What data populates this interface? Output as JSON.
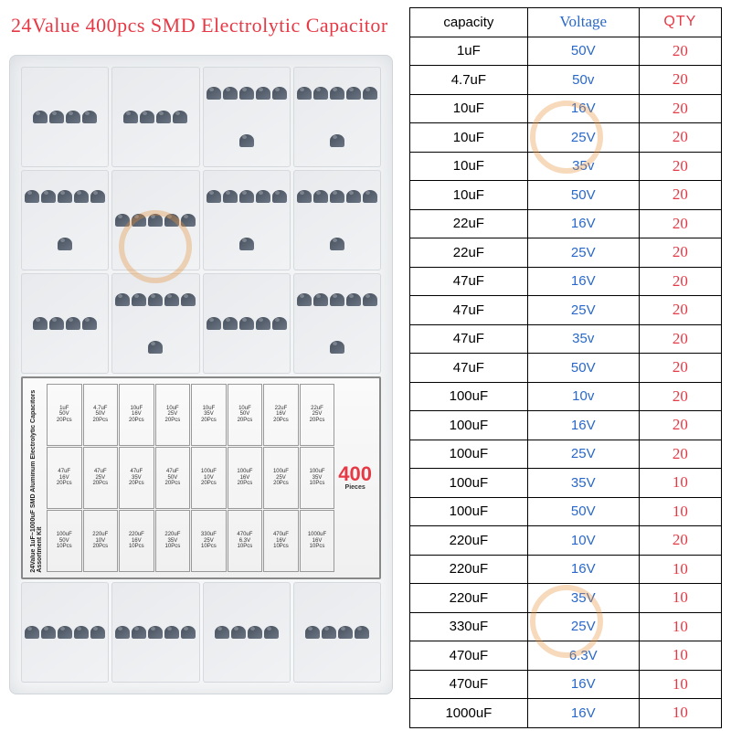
{
  "title": "24Value 400pcs SMD Electrolytic Capacitor",
  "pieces": {
    "number": "400",
    "label": "Pieces"
  },
  "label_title": "24Value 1uF~1000uF SMD Aluminum Electrolytic Capacitors Assortment Kit",
  "label_cells": [
    {
      "c": "1uF",
      "v": "50V",
      "q": "20Pcs"
    },
    {
      "c": "4.7uF",
      "v": "50V",
      "q": "20Pcs"
    },
    {
      "c": "10uF",
      "v": "16V",
      "q": "20Pcs"
    },
    {
      "c": "10uF",
      "v": "25V",
      "q": "20Pcs"
    },
    {
      "c": "10uF",
      "v": "35V",
      "q": "20Pcs"
    },
    {
      "c": "10uF",
      "v": "50V",
      "q": "20Pcs"
    },
    {
      "c": "22uF",
      "v": "16V",
      "q": "20Pcs"
    },
    {
      "c": "22uF",
      "v": "25V",
      "q": "20Pcs"
    },
    {
      "c": "47uF",
      "v": "16V",
      "q": "20Pcs"
    },
    {
      "c": "47uF",
      "v": "25V",
      "q": "20Pcs"
    },
    {
      "c": "47uF",
      "v": "35V",
      "q": "20Pcs"
    },
    {
      "c": "47uF",
      "v": "50V",
      "q": "20Pcs"
    },
    {
      "c": "100uF",
      "v": "10V",
      "q": "20Pcs"
    },
    {
      "c": "100uF",
      "v": "16V",
      "q": "20Pcs"
    },
    {
      "c": "100uF",
      "v": "25V",
      "q": "20Pcs"
    },
    {
      "c": "100uF",
      "v": "35V",
      "q": "10Pcs"
    },
    {
      "c": "100uF",
      "v": "50V",
      "q": "10Pcs"
    },
    {
      "c": "220uF",
      "v": "10V",
      "q": "20Pcs"
    },
    {
      "c": "220uF",
      "v": "16V",
      "q": "10Pcs"
    },
    {
      "c": "220uF",
      "v": "35V",
      "q": "10Pcs"
    },
    {
      "c": "330uF",
      "v": "25V",
      "q": "10Pcs"
    },
    {
      "c": "470uF",
      "v": "6.3V",
      "q": "10Pcs"
    },
    {
      "c": "470uF",
      "v": "16V",
      "q": "10Pcs"
    },
    {
      "c": "1000uF",
      "v": "16V",
      "q": "10Pcs"
    }
  ],
  "table": {
    "headers": {
      "capacity": "capacity",
      "voltage": "Voltage",
      "qty": "QTY"
    },
    "rows": [
      {
        "capacity": "1uF",
        "voltage": "50V",
        "qty": "20"
      },
      {
        "capacity": "4.7uF",
        "voltage": "50v",
        "qty": "20"
      },
      {
        "capacity": "10uF",
        "voltage": "16V",
        "qty": "20"
      },
      {
        "capacity": "10uF",
        "voltage": "25V",
        "qty": "20"
      },
      {
        "capacity": "10uF",
        "voltage": "35v",
        "qty": "20"
      },
      {
        "capacity": "10uF",
        "voltage": "50V",
        "qty": "20"
      },
      {
        "capacity": "22uF",
        "voltage": "16V",
        "qty": "20"
      },
      {
        "capacity": "22uF",
        "voltage": "25V",
        "qty": "20"
      },
      {
        "capacity": "47uF",
        "voltage": "16V",
        "qty": "20"
      },
      {
        "capacity": "47uF",
        "voltage": "25V",
        "qty": "20"
      },
      {
        "capacity": "47uF",
        "voltage": "35v",
        "qty": "20"
      },
      {
        "capacity": "47uF",
        "voltage": "50V",
        "qty": "20"
      },
      {
        "capacity": "100uF",
        "voltage": "10v",
        "qty": "20"
      },
      {
        "capacity": "100uF",
        "voltage": "16V",
        "qty": "20"
      },
      {
        "capacity": "100uF",
        "voltage": "25V",
        "qty": "20"
      },
      {
        "capacity": "100uF",
        "voltage": "35V",
        "qty": "10"
      },
      {
        "capacity": "100uF",
        "voltage": "50V",
        "qty": "10"
      },
      {
        "capacity": "220uF",
        "voltage": "10V",
        "qty": "20"
      },
      {
        "capacity": "220uF",
        "voltage": "16V",
        "qty": "10"
      },
      {
        "capacity": "220uF",
        "voltage": "35V",
        "qty": "10"
      },
      {
        "capacity": "330uF",
        "voltage": "25V",
        "qty": "10"
      },
      {
        "capacity": "470uF",
        "voltage": "6.3V",
        "qty": "10"
      },
      {
        "capacity": "470uF",
        "voltage": "16V",
        "qty": "10"
      },
      {
        "capacity": "1000uF",
        "voltage": "16V",
        "qty": "10"
      }
    ]
  },
  "colors": {
    "title": "#e63946",
    "voltage": "#2968c9",
    "qty": "#e63946",
    "border": "#000000"
  }
}
